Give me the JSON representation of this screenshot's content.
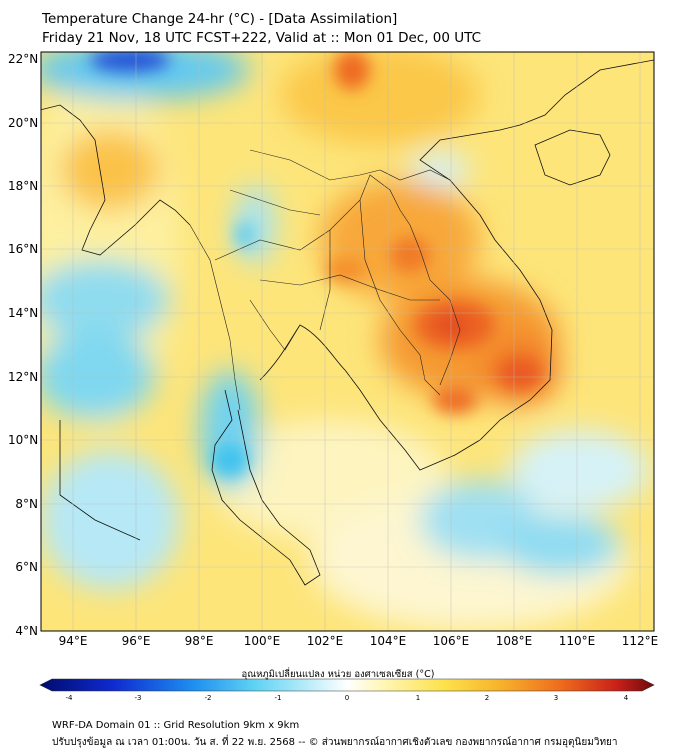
{
  "header": {
    "title_line1": "Temperature Change 24-hr (°C) - [Data Assimilation]",
    "title_line2": "Friday 21 Nov, 18 UTC FCST+222, Valid at :: Mon 01 Dec, 00 UTC"
  },
  "axes": {
    "lat_labels": [
      "22°N",
      "20°N",
      "18°N",
      "16°N",
      "14°N",
      "12°N",
      "10°N",
      "8°N",
      "6°N",
      "4°N"
    ],
    "lon_labels": [
      "94°E",
      "96°E",
      "98°E",
      "100°E",
      "102°E",
      "104°E",
      "106°E",
      "108°E",
      "110°E",
      "112°E"
    ]
  },
  "colorbar": {
    "title": "อุณหภูมิเปลี่ยนแปลง หน่วย องศาเซลเซียส (°C)",
    "ticks": [
      "-4",
      "-3",
      "-2",
      "-1",
      "0",
      "1",
      "2",
      "3",
      "4"
    ],
    "min": -4,
    "max": 4
  },
  "footer": {
    "line1": "WRF-DA Domain 01 :: Grid Resolution 9km x 9km",
    "line2": "ปรับปรุงข้อมูล ณ เวลา 01:00น. วัน ส. ที่ 22 พ.ย. 2568 -- © ส่วนพยากรณ์อากาศเชิงตัวเลข กองพยากรณ์อากาศ กรมอุตุนิยมวิทยา"
  },
  "colors": {
    "cold_strong": "#1c2fb0",
    "cold": "#3fc8ee",
    "neutral": "#fdf7c0",
    "warm": "#fbd43a",
    "hot": "#f08a22",
    "very_hot": "#e2451c"
  }
}
